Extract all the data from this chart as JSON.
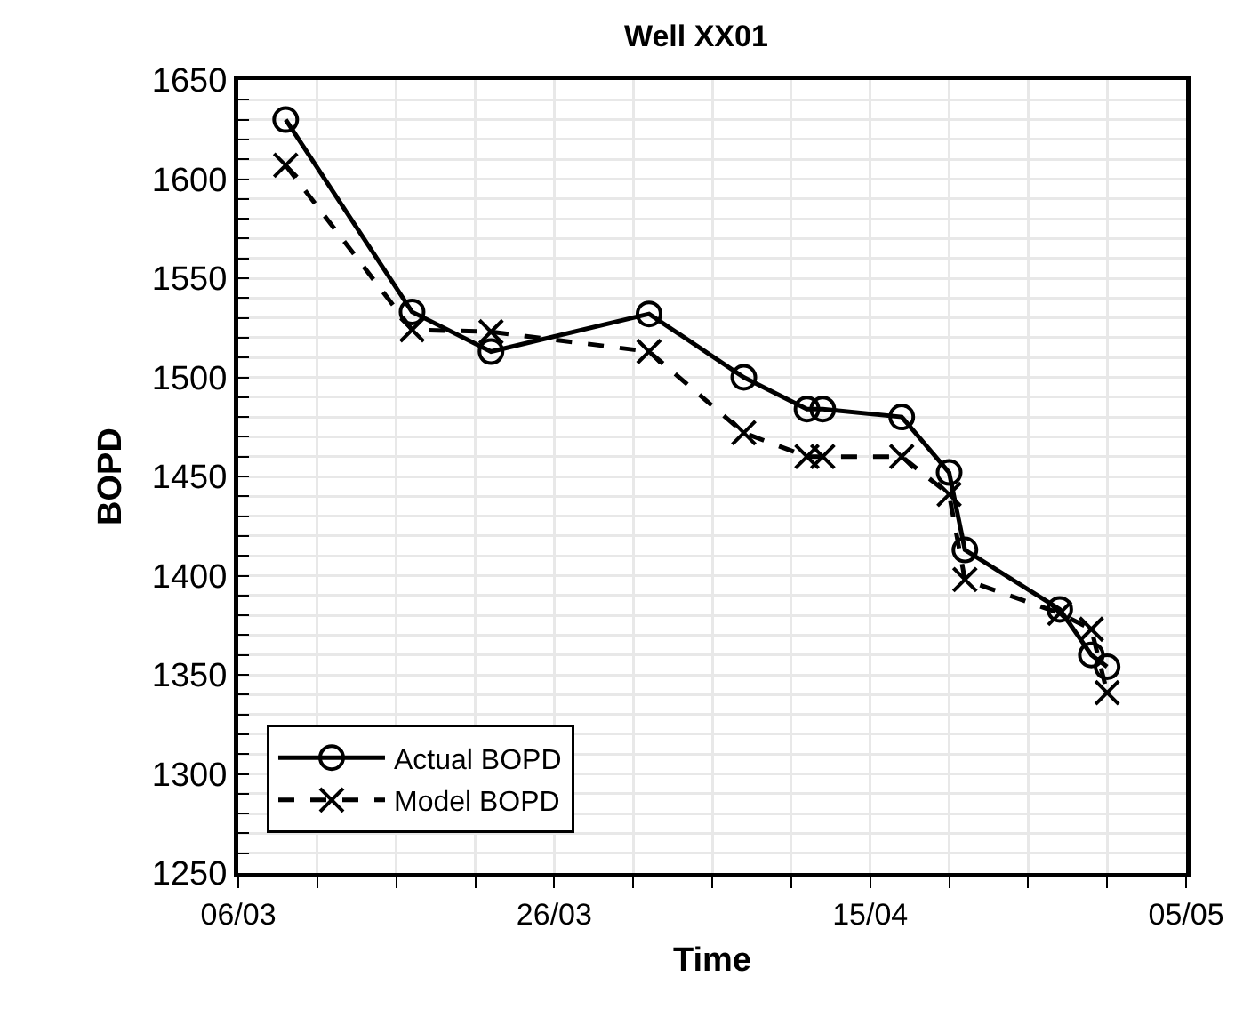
{
  "chart_data": {
    "type": "line",
    "title": "Well XX01",
    "xlabel": "Time",
    "ylabel": "BOPD",
    "x": [
      "--03-09",
      "--03-17",
      "--03-22",
      "--04-01",
      "--04-07",
      "--04-11",
      "--04-12",
      "--04-17",
      "--04-20",
      "--04-21",
      "--04-27",
      "--04-29",
      "--04-30"
    ],
    "series": [
      {
        "name": "Actual BOPD",
        "color": "#000000",
        "marker": "circle",
        "line_style": "solid",
        "values": [
          1630,
          1533,
          1513,
          1532,
          1500,
          1484,
          1484,
          1480,
          1452,
          1413,
          1383,
          1360,
          1354
        ]
      },
      {
        "name": "Model BOPD",
        "color": "#000000",
        "marker": "cross",
        "line_style": "dashed",
        "values": [
          1607,
          1524,
          1523,
          1513,
          1472,
          1460,
          1460,
          1460,
          1441,
          1398,
          1381,
          1373,
          1341
        ]
      }
    ],
    "xlim": [
      "--03-06",
      "--05-05"
    ],
    "xticks": [
      {
        "value": "--03-06",
        "label": "06/03"
      },
      {
        "value": "--03-11",
        "label": null
      },
      {
        "value": "--03-16",
        "label": null
      },
      {
        "value": "--03-21",
        "label": null
      },
      {
        "value": "--03-26",
        "label": "26/03"
      },
      {
        "value": "--03-31",
        "label": null
      },
      {
        "value": "--04-05",
        "label": null
      },
      {
        "value": "--04-10",
        "label": null
      },
      {
        "value": "--04-15",
        "label": "15/04"
      },
      {
        "value": "--04-20",
        "label": null
      },
      {
        "value": "--04-25",
        "label": null
      },
      {
        "value": "--04-30",
        "label": null
      },
      {
        "value": "--05-05",
        "label": "05/05"
      }
    ],
    "ylim": [
      1250,
      1650
    ],
    "yticks": [
      1250,
      {
        "value": 1260,
        "label": null
      },
      {
        "value": 1270,
        "label": null
      },
      {
        "value": 1280,
        "label": null
      },
      {
        "value": 1290,
        "label": null
      },
      1300,
      {
        "value": 1310,
        "label": null
      },
      {
        "value": 1320,
        "label": null
      },
      {
        "value": 1330,
        "label": null
      },
      {
        "value": 1340,
        "label": null
      },
      1350,
      {
        "value": 1360,
        "label": null
      },
      {
        "value": 1370,
        "label": null
      },
      {
        "value": 1380,
        "label": null
      },
      {
        "value": 1390,
        "label": null
      },
      1400,
      {
        "value": 1410,
        "label": null
      },
      {
        "value": 1420,
        "label": null
      },
      {
        "value": 1430,
        "label": null
      },
      {
        "value": 1440,
        "label": null
      },
      1450,
      {
        "value": 1460,
        "label": null
      },
      {
        "value": 1470,
        "label": null
      },
      {
        "value": 1480,
        "label": null
      },
      {
        "value": 1490,
        "label": null
      },
      1500,
      {
        "value": 1510,
        "label": null
      },
      {
        "value": 1520,
        "label": null
      },
      {
        "value": 1530,
        "label": null
      },
      {
        "value": 1540,
        "label": null
      },
      1550,
      {
        "value": 1560,
        "label": null
      },
      {
        "value": 1570,
        "label": null
      },
      {
        "value": 1580,
        "label": null
      },
      {
        "value": 1590,
        "label": null
      },
      1600,
      {
        "value": 1610,
        "label": null
      },
      {
        "value": 1620,
        "label": null
      },
      {
        "value": 1630,
        "label": null
      },
      {
        "value": 1640,
        "label": null
      },
      1650
    ],
    "grid": true,
    "legend": "bottom left"
  }
}
